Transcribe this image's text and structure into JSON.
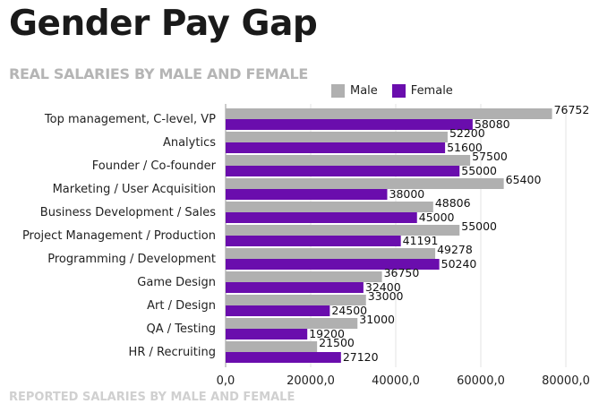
{
  "page": {
    "title": "Gender Pay Gap",
    "subtitle": "REAL SALARIES BY MALE AND FEMALE",
    "next_section_cut": "REPORTED SALARIES BY MALE AND FEMALE"
  },
  "colors": {
    "male": "#b0b0b0",
    "female": "#6a0dad",
    "grid": "#e3e3e3",
    "axis": "#999999"
  },
  "chart_data": {
    "type": "bar",
    "orientation": "horizontal",
    "title": "REAL SALARIES BY MALE AND FEMALE",
    "xlabel": "",
    "ylabel": "",
    "xlim": [
      0,
      80000
    ],
    "grid": true,
    "legend_position": "top-right",
    "x_ticks": [
      0,
      20000,
      40000,
      60000,
      80000
    ],
    "x_tick_labels": [
      "0,0",
      "20000,0",
      "40000,0",
      "60000,0",
      "80000,0"
    ],
    "categories": [
      "Top management, C-level, VP",
      "Analytics",
      "Founder / Co-founder",
      "Marketing / User Acquisition",
      "Business Development / Sales",
      "Project Management / Production",
      "Programming / Development",
      "Game Design",
      "Art / Design",
      "QA / Testing",
      "HR / Recruiting"
    ],
    "series": [
      {
        "name": "Male",
        "values": [
          76752,
          52200,
          57500,
          65400,
          48806,
          55000,
          49278,
          36750,
          33000,
          31000,
          21500
        ]
      },
      {
        "name": "Female",
        "values": [
          58080,
          51600,
          55000,
          38000,
          45000,
          41191,
          50240,
          32400,
          24500,
          19200,
          27120
        ]
      }
    ]
  }
}
